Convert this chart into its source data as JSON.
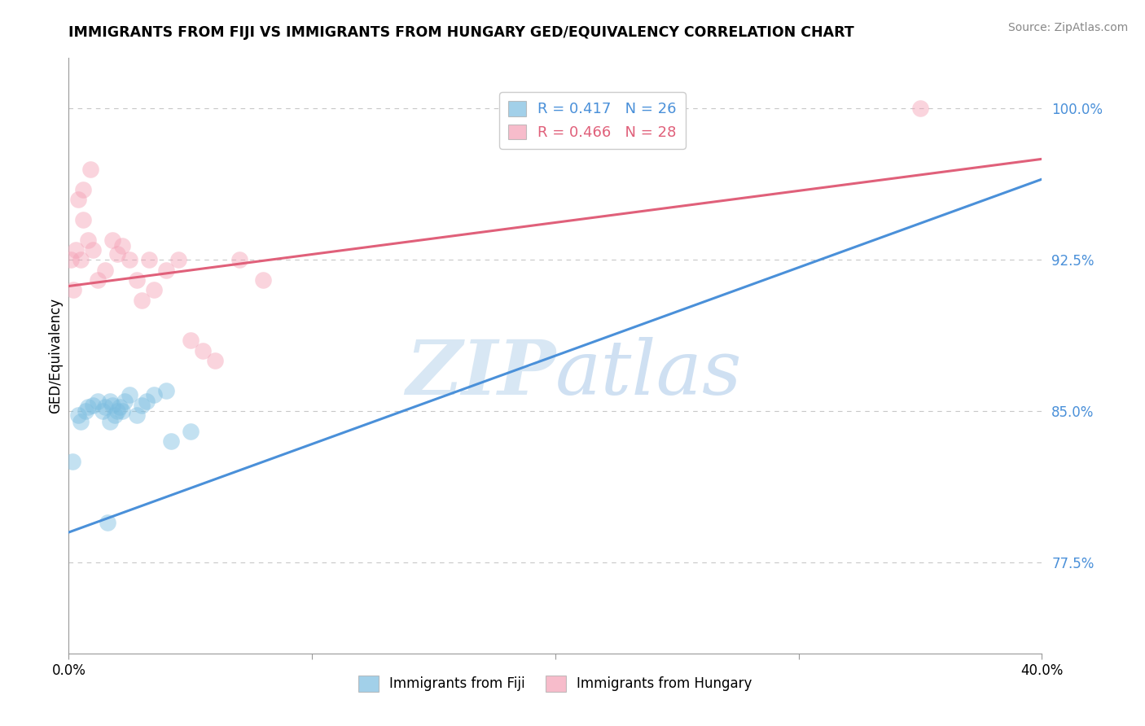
{
  "title": "IMMIGRANTS FROM FIJI VS IMMIGRANTS FROM HUNGARY GED/EQUIVALENCY CORRELATION CHART",
  "source_text": "Source: ZipAtlas.com",
  "ylabel": "GED/Equivalency",
  "xmin": 0.0,
  "xmax": 40.0,
  "ymin": 73.0,
  "ymax": 102.5,
  "yticks": [
    77.5,
    85.0,
    92.5,
    100.0
  ],
  "xticks": [
    0.0,
    10.0,
    20.0,
    30.0,
    40.0
  ],
  "xtick_labels": [
    "0.0%",
    "",
    "",
    "",
    "40.0%"
  ],
  "ytick_labels": [
    "77.5%",
    "85.0%",
    "92.5%",
    "100.0%"
  ],
  "fiji_color": "#7bbde0",
  "hungary_color": "#f4a0b5",
  "fiji_line_color": "#4a90d9",
  "hungary_line_color": "#e0607a",
  "fiji_R": 0.417,
  "fiji_N": 26,
  "hungary_R": 0.466,
  "hungary_N": 28,
  "legend_label_fiji": "Immigrants from Fiji",
  "legend_label_hungary": "Immigrants from Hungary",
  "fiji_scatter_x": [
    0.15,
    0.4,
    0.5,
    0.7,
    0.8,
    1.0,
    1.2,
    1.4,
    1.5,
    1.7,
    1.8,
    2.0,
    2.1,
    2.3,
    2.5,
    2.8,
    3.0,
    3.2,
    3.5,
    4.0,
    4.2,
    5.0,
    1.6,
    1.7,
    1.9,
    2.2
  ],
  "fiji_scatter_y": [
    82.5,
    84.8,
    84.5,
    85.0,
    85.2,
    85.3,
    85.5,
    85.0,
    85.2,
    85.5,
    85.3,
    85.0,
    85.2,
    85.5,
    85.8,
    84.8,
    85.3,
    85.5,
    85.8,
    86.0,
    83.5,
    84.0,
    79.5,
    84.5,
    84.8,
    85.0
  ],
  "hungary_scatter_x": [
    0.1,
    0.2,
    0.3,
    0.5,
    0.6,
    0.8,
    1.0,
    1.2,
    1.5,
    1.8,
    2.0,
    2.2,
    2.5,
    2.8,
    3.0,
    3.3,
    3.5,
    4.0,
    4.5,
    5.0,
    5.5,
    6.0,
    7.0,
    8.0,
    0.4,
    0.6,
    0.9,
    35.0
  ],
  "hungary_scatter_y": [
    92.5,
    91.0,
    93.0,
    92.5,
    94.5,
    93.5,
    93.0,
    91.5,
    92.0,
    93.5,
    92.8,
    93.2,
    92.5,
    91.5,
    90.5,
    92.5,
    91.0,
    92.0,
    92.5,
    88.5,
    88.0,
    87.5,
    92.5,
    91.5,
    95.5,
    96.0,
    97.0,
    100.0
  ],
  "fiji_trend_x": [
    0.0,
    40.0
  ],
  "fiji_trend_y": [
    79.0,
    96.5
  ],
  "hungary_trend_x": [
    0.0,
    40.0
  ],
  "hungary_trend_y": [
    91.2,
    97.5
  ],
  "watermark_zip": "ZIP",
  "watermark_atlas": "atlas",
  "background_color": "#ffffff",
  "grid_color": "#c8c8c8"
}
